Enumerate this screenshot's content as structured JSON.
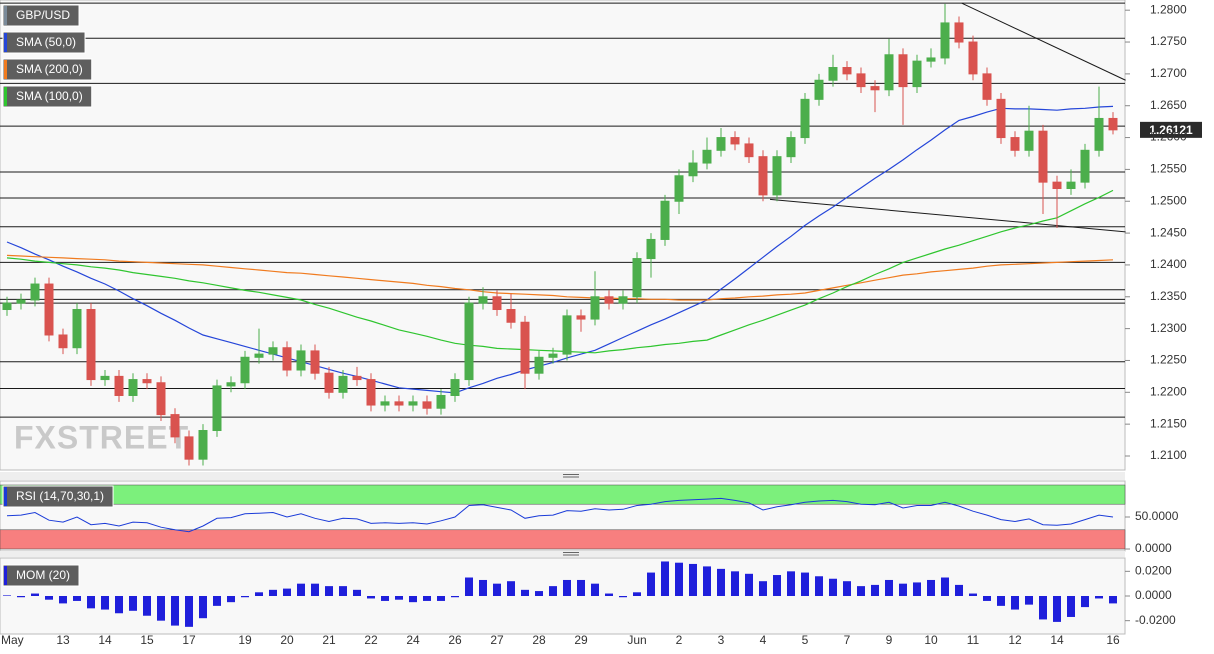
{
  "chart_data": [
    {
      "type": "candlestick",
      "watermark": "FXSTREET",
      "categories": [
        "May",
        null,
        null,
        null,
        "13",
        null,
        null,
        "14",
        null,
        null,
        "15",
        null,
        null,
        "17",
        null,
        null,
        null,
        "19",
        null,
        null,
        "20",
        null,
        null,
        "21",
        null,
        null,
        "22",
        null,
        null,
        "24",
        null,
        null,
        "26",
        null,
        null,
        "27",
        null,
        null,
        "28",
        null,
        null,
        "29",
        null,
        null,
        null,
        "Jun",
        null,
        null,
        "2",
        null,
        null,
        "3",
        null,
        null,
        "4",
        null,
        null,
        "5",
        null,
        null,
        "7",
        null,
        null,
        "9",
        null,
        null,
        "10",
        null,
        null,
        "11",
        null,
        null,
        "12",
        null,
        null,
        "14",
        null,
        null,
        null,
        "16"
      ],
      "candles": {
        "name": "GBP/USD",
        "color": "#7a8a99",
        "up_color": "#4cae4c",
        "down_color": "#d9534f",
        "open": [
          1.233,
          1.234,
          1.2345,
          1.237,
          1.229,
          1.227,
          1.233,
          1.222,
          1.2225,
          1.2195,
          1.222,
          1.2215,
          1.2165,
          1.213,
          1.2095,
          1.214,
          1.221,
          1.2215,
          1.2255,
          1.226,
          1.227,
          1.2235,
          1.2265,
          1.223,
          1.22,
          1.2225,
          1.222,
          1.218,
          1.2185,
          1.218,
          1.2185,
          1.2175,
          1.2195,
          1.222,
          1.234,
          1.235,
          1.233,
          1.231,
          1.223,
          1.2255,
          1.226,
          1.232,
          1.2315,
          1.235,
          1.234,
          1.235,
          1.241,
          1.244,
          1.25,
          1.254,
          1.256,
          1.258,
          1.26,
          1.259,
          1.257,
          1.251,
          1.257,
          1.26,
          1.266,
          1.269,
          1.271,
          1.27,
          1.268,
          1.2675,
          1.273,
          1.268,
          1.272,
          1.2725,
          1.278,
          1.275,
          1.27,
          1.266,
          1.26,
          1.258,
          1.261,
          1.253,
          1.252,
          1.253,
          1.258,
          1.263
        ],
        "high": [
          1.235,
          1.2355,
          1.238,
          1.238,
          1.23,
          1.234,
          1.234,
          1.2235,
          1.2235,
          1.223,
          1.223,
          1.2225,
          1.2175,
          1.214,
          1.215,
          1.222,
          1.2225,
          1.2265,
          1.23,
          1.228,
          1.228,
          1.2275,
          1.2275,
          1.224,
          1.2235,
          1.224,
          1.223,
          1.2195,
          1.2195,
          1.2195,
          1.2195,
          1.2205,
          1.223,
          1.235,
          1.2365,
          1.236,
          1.2355,
          1.232,
          1.2265,
          1.227,
          1.233,
          1.233,
          1.239,
          1.236,
          1.236,
          1.242,
          1.245,
          1.251,
          1.255,
          1.258,
          1.26,
          1.2615,
          1.261,
          1.26,
          1.258,
          1.258,
          1.261,
          1.267,
          1.27,
          1.273,
          1.272,
          1.271,
          1.269,
          1.2755,
          1.274,
          1.273,
          1.274,
          1.281,
          1.279,
          1.276,
          1.271,
          1.267,
          1.261,
          1.265,
          1.262,
          1.254,
          1.255,
          1.259,
          1.268,
          1.264
        ],
        "low": [
          1.232,
          1.233,
          1.2335,
          1.228,
          1.226,
          1.226,
          1.221,
          1.221,
          1.2185,
          1.2185,
          1.2205,
          1.2155,
          1.212,
          1.2085,
          1.2085,
          1.213,
          1.22,
          1.2205,
          1.2245,
          1.225,
          1.2225,
          1.2225,
          1.222,
          1.219,
          1.219,
          1.221,
          1.217,
          1.217,
          1.217,
          1.217,
          1.2165,
          1.2165,
          1.2185,
          1.221,
          1.233,
          1.232,
          1.23,
          1.2205,
          1.222,
          1.2245,
          1.225,
          1.2295,
          1.2305,
          1.233,
          1.233,
          1.234,
          1.238,
          1.243,
          1.248,
          1.253,
          1.255,
          1.257,
          1.258,
          1.256,
          1.25,
          1.25,
          1.256,
          1.259,
          1.265,
          1.268,
          1.269,
          1.267,
          1.264,
          1.2665,
          1.262,
          1.267,
          1.271,
          1.2715,
          1.274,
          1.269,
          1.265,
          1.259,
          1.257,
          1.257,
          1.248,
          1.2458,
          1.251,
          1.252,
          1.257,
          1.2605
        ],
        "close": [
          1.234,
          1.2345,
          1.237,
          1.229,
          1.227,
          1.233,
          1.222,
          1.2225,
          1.2195,
          1.222,
          1.2215,
          1.2165,
          1.213,
          1.2095,
          1.214,
          1.221,
          1.2215,
          1.2255,
          1.226,
          1.227,
          1.2235,
          1.2265,
          1.223,
          1.22,
          1.2225,
          1.222,
          1.218,
          1.2185,
          1.218,
          1.2185,
          1.2175,
          1.2195,
          1.222,
          1.234,
          1.235,
          1.233,
          1.231,
          1.223,
          1.2255,
          1.226,
          1.232,
          1.2315,
          1.235,
          1.234,
          1.235,
          1.241,
          1.244,
          1.25,
          1.254,
          1.256,
          1.258,
          1.26,
          1.259,
          1.257,
          1.251,
          1.257,
          1.26,
          1.266,
          1.269,
          1.271,
          1.27,
          1.268,
          1.2675,
          1.273,
          1.268,
          1.272,
          1.2725,
          1.278,
          1.275,
          1.27,
          1.266,
          1.26,
          1.258,
          1.261,
          1.253,
          1.252,
          1.253,
          1.258,
          1.263,
          1.26121
        ]
      },
      "series": [
        {
          "name": "SMA (50,0)",
          "color": "#2546d9",
          "values": [
            1.2436,
            1.2427,
            1.2417,
            1.2408,
            1.2398,
            1.2389,
            1.2379,
            1.237,
            1.2359,
            1.2347,
            1.2336,
            1.2324,
            1.2313,
            1.2301,
            1.229,
            1.2284,
            1.2278,
            1.2272,
            1.2266,
            1.226,
            1.2254,
            1.2248,
            1.2242,
            1.2236,
            1.223,
            1.2225,
            1.2219,
            1.2213,
            1.2207,
            1.2205,
            1.2203,
            1.2201,
            1.2199,
            1.2207,
            1.2214,
            1.2222,
            1.2228,
            1.2235,
            1.2241,
            1.2247,
            1.2254,
            1.226,
            1.2266,
            1.2276,
            1.2286,
            1.2296,
            1.2306,
            1.2315,
            1.2325,
            1.2335,
            1.2345,
            1.2362,
            1.2378,
            1.2395,
            1.2412,
            1.2429,
            1.2445,
            1.2462,
            1.2477,
            1.2491,
            1.2506,
            1.2521,
            1.2536,
            1.255,
            1.2565,
            1.2581,
            1.2596,
            1.2612,
            1.2627,
            1.2633,
            1.264,
            1.2646,
            1.2645,
            1.2645,
            1.2644,
            1.2643,
            1.2645,
            1.2646,
            1.2648,
            1.2649
          ]
        },
        {
          "name": "SMA (200,0)",
          "color": "#f07b1f",
          "values": [
            1.2415,
            1.2414,
            1.2413,
            1.2412,
            1.2411,
            1.241,
            1.2409,
            1.2408,
            1.2406,
            1.2405,
            1.2404,
            1.2403,
            1.2402,
            1.2401,
            1.24,
            1.2398,
            1.2396,
            1.2394,
            1.2392,
            1.239,
            1.2388,
            1.2387,
            1.2385,
            1.2383,
            1.2381,
            1.2379,
            1.2377,
            1.2375,
            1.2373,
            1.2371,
            1.2368,
            1.2366,
            1.2363,
            1.2361,
            1.2358,
            1.2356,
            1.2355,
            1.2354,
            1.2353,
            1.2352,
            1.235,
            1.2349,
            1.2348,
            1.2348,
            1.2347,
            1.2347,
            1.2346,
            1.2346,
            1.2345,
            1.2345,
            1.2345,
            1.2347,
            1.2348,
            1.235,
            1.2351,
            1.2353,
            1.2354,
            1.2356,
            1.236,
            1.2364,
            1.2368,
            1.2372,
            1.2376,
            1.238,
            1.2384,
            1.2386,
            1.2389,
            1.2391,
            1.2393,
            1.2395,
            1.2398,
            1.24,
            1.2401,
            1.2402,
            1.2403,
            1.2404,
            1.2405,
            1.2406,
            1.2407,
            1.2408
          ]
        },
        {
          "name": "SMA (100,0)",
          "color": "#2fc52f",
          "values": [
            1.2411,
            1.2409,
            1.2406,
            1.2404,
            1.2402,
            1.24,
            1.2397,
            1.2395,
            1.2392,
            1.2388,
            1.2385,
            1.2382,
            1.2379,
            1.2375,
            1.2372,
            1.2368,
            1.2364,
            1.236,
            1.2357,
            1.2353,
            1.2349,
            1.2345,
            1.2338,
            1.2332,
            1.2325,
            1.2318,
            1.2312,
            1.2305,
            1.2298,
            1.2293,
            1.2288,
            1.2282,
            1.2277,
            1.2274,
            1.2272,
            1.2269,
            1.2268,
            1.2267,
            1.2266,
            1.2265,
            1.2264,
            1.2263,
            1.2262,
            1.2265,
            1.2267,
            1.227,
            1.2272,
            1.2275,
            1.2277,
            1.228,
            1.2282,
            1.229,
            1.2298,
            1.2306,
            1.2313,
            1.2321,
            1.2329,
            1.2337,
            1.2347,
            1.2356,
            1.2366,
            1.2375,
            1.2385,
            1.2394,
            1.2404,
            1.2411,
            1.2418,
            1.2425,
            1.2431,
            1.2438,
            1.2445,
            1.2452,
            1.2458,
            1.2463,
            1.2469,
            1.2474,
            1.2485,
            1.2496,
            1.2506,
            1.2517
          ]
        }
      ],
      "ylim": [
        1.2078,
        1.2816
      ],
      "yticks": [
        {
          "value": 1.21,
          "label": "1.2100"
        },
        {
          "value": 1.215,
          "label": "1.2150"
        },
        {
          "value": 1.22,
          "label": "1.2200"
        },
        {
          "value": 1.225,
          "label": "1.2250"
        },
        {
          "value": 1.23,
          "label": "1.2300"
        },
        {
          "value": 1.235,
          "label": "1.2350"
        },
        {
          "value": 1.24,
          "label": "1.2400"
        },
        {
          "value": 1.245,
          "label": "1.2450"
        },
        {
          "value": 1.25,
          "label": "1.2500"
        },
        {
          "value": 1.255,
          "label": "1.2550"
        },
        {
          "value": 1.26,
          "label": "1.2600"
        },
        {
          "value": 1.265,
          "label": "1.2650"
        },
        {
          "value": 1.27,
          "label": "1.2700"
        },
        {
          "value": 1.275,
          "label": "1.2750"
        },
        {
          "value": 1.28,
          "label": "1.2800"
        }
      ],
      "levels": [
        1.2811,
        1.2756,
        1.2685,
        1.2618,
        1.2546,
        1.2505,
        1.246,
        1.2404,
        1.2361,
        1.2346,
        1.234,
        1.2248,
        1.2206,
        1.2161
      ],
      "trendlines": [
        {
          "x": [
            68.2,
            79.9
          ],
          "y": [
            1.2811,
            1.269
          ]
        },
        {
          "x": [
            54.5,
            79.9
          ],
          "y": [
            1.2503,
            1.2452
          ]
        }
      ]
    },
    {
      "type": "line",
      "series": [
        {
          "name": "RSI (14,70,30,1)",
          "color": "#1a3bd8",
          "values": [
            52,
            53,
            57,
            45,
            42,
            50,
            38,
            40,
            36,
            42,
            41,
            34,
            30,
            27,
            36,
            48,
            49,
            55,
            56,
            57,
            50,
            55,
            48,
            43,
            48,
            47,
            40,
            41,
            40,
            41,
            39,
            44,
            50,
            68,
            69,
            65,
            61,
            48,
            52,
            53,
            60,
            59,
            63,
            61,
            62,
            68,
            70,
            74,
            76,
            77,
            78,
            79,
            76,
            72,
            61,
            66,
            69,
            73,
            75,
            76,
            74,
            70,
            69,
            73,
            64,
            68,
            68,
            73,
            67,
            59,
            53,
            46,
            43,
            47,
            38,
            37,
            39,
            46,
            53,
            50
          ]
        }
      ],
      "bands": [
        {
          "from": 70,
          "to": 100,
          "color": "#7cf07c"
        },
        {
          "from": 0,
          "to": 30,
          "color": "#f77f7f"
        }
      ],
      "ylim": [
        0,
        100
      ],
      "yticks": [
        {
          "value": 50,
          "label": "50.0000"
        },
        {
          "value": 0,
          "label": "0.0000"
        }
      ]
    },
    {
      "type": "bar",
      "series": [
        {
          "name": "MOM (20)",
          "color": "#1f1fdb",
          "values": [
            0.0005,
            -0.001,
            0.002,
            -0.003,
            -0.006,
            -0.004,
            -0.01,
            -0.011,
            -0.014,
            -0.012,
            -0.016,
            -0.02,
            -0.024,
            -0.025,
            -0.018,
            -0.008,
            -0.005,
            -0.001,
            0.003,
            0.005,
            0.006,
            0.01,
            0.01,
            0.008,
            0.008,
            0.005,
            -0.002,
            -0.004,
            -0.003,
            -0.005,
            -0.004,
            -0.004,
            -0.001,
            0.015,
            0.013,
            0.01,
            0.012,
            0.005,
            0.004,
            0.008,
            0.013,
            0.013,
            0.01,
            0.002,
            -0.001,
            0.003,
            0.019,
            0.028,
            0.027,
            0.026,
            0.024,
            0.022,
            0.02,
            0.018,
            0.012,
            0.017,
            0.02,
            0.019,
            0.016,
            0.014,
            0.012,
            0.008,
            0.009,
            0.013,
            0.01,
            0.011,
            0.013,
            0.015,
            0.009,
            0.002,
            -0.004,
            -0.008,
            -0.011,
            -0.007,
            -0.019,
            -0.021,
            -0.017,
            -0.009,
            -0.002,
            -0.006
          ]
        }
      ],
      "ylim": [
        -0.03,
        0.03
      ],
      "yticks": [
        {
          "value": 0.02,
          "label": "0.0200"
        },
        {
          "value": 0,
          "label": "0.0000"
        },
        {
          "value": -0.02,
          "label": "-0.0200"
        }
      ]
    }
  ]
}
